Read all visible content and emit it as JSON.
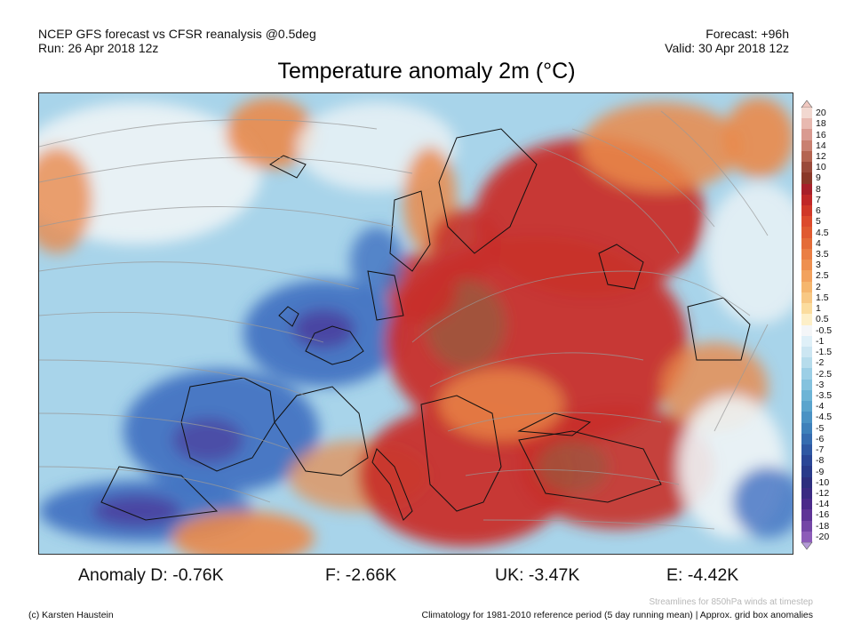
{
  "header": {
    "model_line": "NCEP GFS forecast vs CFSR reanalysis @0.5deg",
    "run_line": "Run: 26 Apr 2018 12z",
    "forecast_line": "Forecast: +96h",
    "valid_line": "Valid: 30 Apr 2018 12z"
  },
  "title": "Temperature anomaly 2m (°C)",
  "colorbar": {
    "labels": [
      "20",
      "18",
      "16",
      "14",
      "12",
      "10",
      "9",
      "8",
      "7",
      "6",
      "5",
      "4.5",
      "4",
      "3.5",
      "3",
      "2.5",
      "2",
      "1.5",
      "1",
      "0.5",
      "-0.5",
      "-1",
      "-1.5",
      "-2",
      "-2.5",
      "-3",
      "-3.5",
      "-4",
      "-4.5",
      "-5",
      "-6",
      "-7",
      "-8",
      "-9",
      "-10",
      "-12",
      "-14",
      "-16",
      "-18",
      "-20"
    ],
    "colors": [
      "#f2d8d0",
      "#e8b9b0",
      "#d99a90",
      "#c98070",
      "#b46450",
      "#9a4a3a",
      "#8a3828",
      "#a8202a",
      "#c02828",
      "#d03828",
      "#dc4a2c",
      "#e05a30",
      "#e46c38",
      "#ea7e44",
      "#ee9050",
      "#f2a25e",
      "#f5b66e",
      "#f8c884",
      "#fbdc9e",
      "#fdefc8",
      "#f4f6f8",
      "#dff0f8",
      "#cce6f2",
      "#b6dcec",
      "#9ccfe6",
      "#84c2de",
      "#6db4d6",
      "#5aa4cd",
      "#4a92c4",
      "#3e80ba",
      "#366cb0",
      "#2f58a3",
      "#2a4696",
      "#283a8a",
      "#2c2e7e",
      "#3a2a82",
      "#4a2a8a",
      "#5e3496",
      "#7446a6",
      "#8c5cb8"
    ],
    "top_arrow_color": "#f0c8c0",
    "bottom_arrow_color": "#b49ad6"
  },
  "anomalies": [
    {
      "label": "Anomaly D: -0.76K"
    },
    {
      "label": "F: -2.66K"
    },
    {
      "label": "UK: -3.47K"
    },
    {
      "label": "E: -4.42K"
    }
  ],
  "footer": {
    "credit": "(c) Karsten Haustein",
    "streamlines_note": "Streamlines for 850hPa winds at timestep",
    "climatology_note": "Climatology for 1981-2010 reference period (5 day running mean) | Approx. grid box anomalies"
  },
  "map_colors": {
    "ocean": "#a8d4ea",
    "cold": "#3f6fc0",
    "very_cold": "#4a3a9a",
    "warm": "#ea8a4a",
    "hot": "#c8302a",
    "very_hot": "#9a5a40",
    "neutral": "#eef4f6",
    "coast": "#111111",
    "streamline": "#9a9a9a"
  }
}
